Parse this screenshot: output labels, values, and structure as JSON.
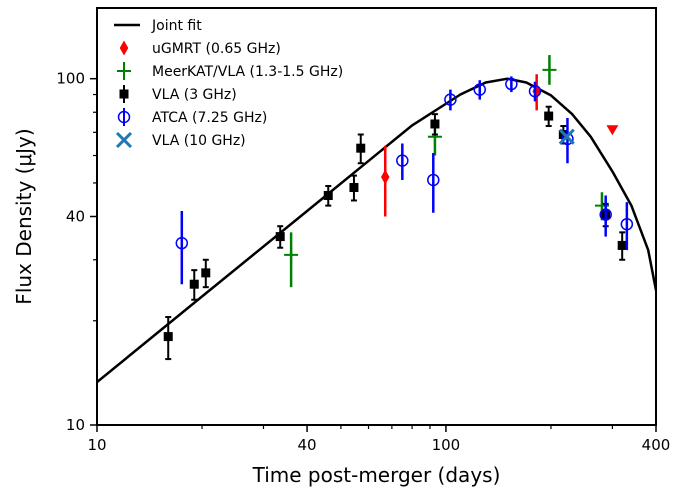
{
  "chart_data": {
    "type": "scatter",
    "xlabel": "Time post-merger (days)",
    "ylabel": "Flux Density (μJy)",
    "xscale": "log",
    "yscale": "log",
    "xlim": [
      10,
      400
    ],
    "ylim": [
      10,
      160
    ],
    "x_ticks": [
      10,
      40,
      100,
      400
    ],
    "y_ticks": [
      10,
      40,
      100
    ],
    "x_minor_ticks": [
      20,
      30,
      50,
      60,
      70,
      80,
      90,
      200,
      300
    ],
    "y_minor_ticks": [
      20,
      30,
      50,
      60,
      70,
      80,
      90
    ],
    "legend_position": "top-left",
    "series": [
      {
        "name": "Joint fit",
        "kind": "line",
        "color": "#000000",
        "points": [
          [
            10,
            13.3
          ],
          [
            20,
            23.5
          ],
          [
            40,
            41.5
          ],
          [
            80,
            73.3
          ],
          [
            110,
            90.0
          ],
          [
            130,
            97.5
          ],
          [
            150,
            100.0
          ],
          [
            170,
            97.5
          ],
          [
            200,
            89.5
          ],
          [
            230,
            79.0
          ],
          [
            260,
            68.0
          ],
          [
            300,
            54.0
          ],
          [
            340,
            43.0
          ],
          [
            380,
            32.0
          ],
          [
            400,
            24.5
          ]
        ]
      },
      {
        "name": "uGMRT (0.65 GHz)",
        "marker": "diamond",
        "color": "#ff0000",
        "points": [
          {
            "x": 67.0,
            "y": 52.0,
            "yerr": [
              12.0,
              12.0
            ],
            "upper_limit": false
          },
          {
            "x": 182.0,
            "y": 92.0,
            "yerr": [
              11.0,
              11.0
            ],
            "upper_limit": false
          },
          {
            "x": 300.0,
            "y": 71.0,
            "yerr": [
              0,
              0
            ],
            "upper_limit": true
          }
        ]
      },
      {
        "name": "MeerKAT/VLA (1.3-1.5 GHz)",
        "marker": "plus",
        "color": "#008000",
        "points": [
          {
            "x": 36.0,
            "y": 31.0,
            "yerr": [
              6.0,
              5.0
            ]
          },
          {
            "x": 93.0,
            "y": 68.0,
            "yerr": [
              8.0,
              8.0
            ]
          },
          {
            "x": 198.0,
            "y": 106.0,
            "yerr": [
              10.0,
              11.0
            ]
          },
          {
            "x": 280.0,
            "y": 43.0,
            "yerr": [
              4.0,
              4.0
            ]
          }
        ]
      },
      {
        "name": "VLA (3 GHz)",
        "marker": "square",
        "color": "#000000",
        "points": [
          {
            "x": 16.0,
            "y": 18.0,
            "yerr": [
              2.5,
              2.5
            ]
          },
          {
            "x": 19.0,
            "y": 25.5,
            "yerr": [
              2.5,
              2.5
            ]
          },
          {
            "x": 20.5,
            "y": 27.5,
            "yerr": [
              2.5,
              2.5
            ]
          },
          {
            "x": 33.5,
            "y": 35.0,
            "yerr": [
              2.5,
              2.5
            ]
          },
          {
            "x": 46.0,
            "y": 46.0,
            "yerr": [
              3.0,
              3.0
            ]
          },
          {
            "x": 54.5,
            "y": 48.5,
            "yerr": [
              4.0,
              4.0
            ]
          },
          {
            "x": 57.0,
            "y": 63.0,
            "yerr": [
              6.0,
              6.0
            ]
          },
          {
            "x": 93.0,
            "y": 74.0,
            "yerr": [
              5.0,
              5.0
            ]
          },
          {
            "x": 197.0,
            "y": 78.0,
            "yerr": [
              5.0,
              5.0
            ]
          },
          {
            "x": 217.0,
            "y": 69.0,
            "yerr": [
              4.0,
              4.0
            ]
          },
          {
            "x": 287.0,
            "y": 40.5,
            "yerr": [
              3.0,
              3.0
            ]
          },
          {
            "x": 320.0,
            "y": 33.0,
            "yerr": [
              3.0,
              3.0
            ]
          }
        ]
      },
      {
        "name": "ATCA (7.25 GHz)",
        "marker": "circle-open",
        "color": "#0000ff",
        "points": [
          {
            "x": 17.5,
            "y": 33.5,
            "yerr": [
              8.0,
              8.0
            ]
          },
          {
            "x": 75.0,
            "y": 58.0,
            "yerr": [
              7.0,
              7.0
            ]
          },
          {
            "x": 92.0,
            "y": 51.0,
            "yerr": [
              10.0,
              10.0
            ]
          },
          {
            "x": 103.0,
            "y": 87.0,
            "yerr": [
              6.0,
              6.0
            ]
          },
          {
            "x": 125.0,
            "y": 93.0,
            "yerr": [
              6.0,
              6.0
            ]
          },
          {
            "x": 154.0,
            "y": 96.5,
            "yerr": [
              5.0,
              5.0
            ]
          },
          {
            "x": 180.0,
            "y": 92.0,
            "yerr": [
              6.0,
              6.0
            ]
          },
          {
            "x": 223.0,
            "y": 67.0,
            "yerr": [
              10.0,
              10.0
            ]
          },
          {
            "x": 287.0,
            "y": 40.5,
            "yerr": [
              5.5,
              5.5
            ]
          },
          {
            "x": 330.0,
            "y": 38.0,
            "yerr": [
              6.0,
              6.0
            ]
          }
        ]
      },
      {
        "name": "VLA (10 GHz)",
        "marker": "x",
        "color": "#1f77b4",
        "points": [
          {
            "x": 222.0,
            "y": 68.0,
            "yerr": [
              0,
              0
            ]
          }
        ]
      }
    ]
  }
}
